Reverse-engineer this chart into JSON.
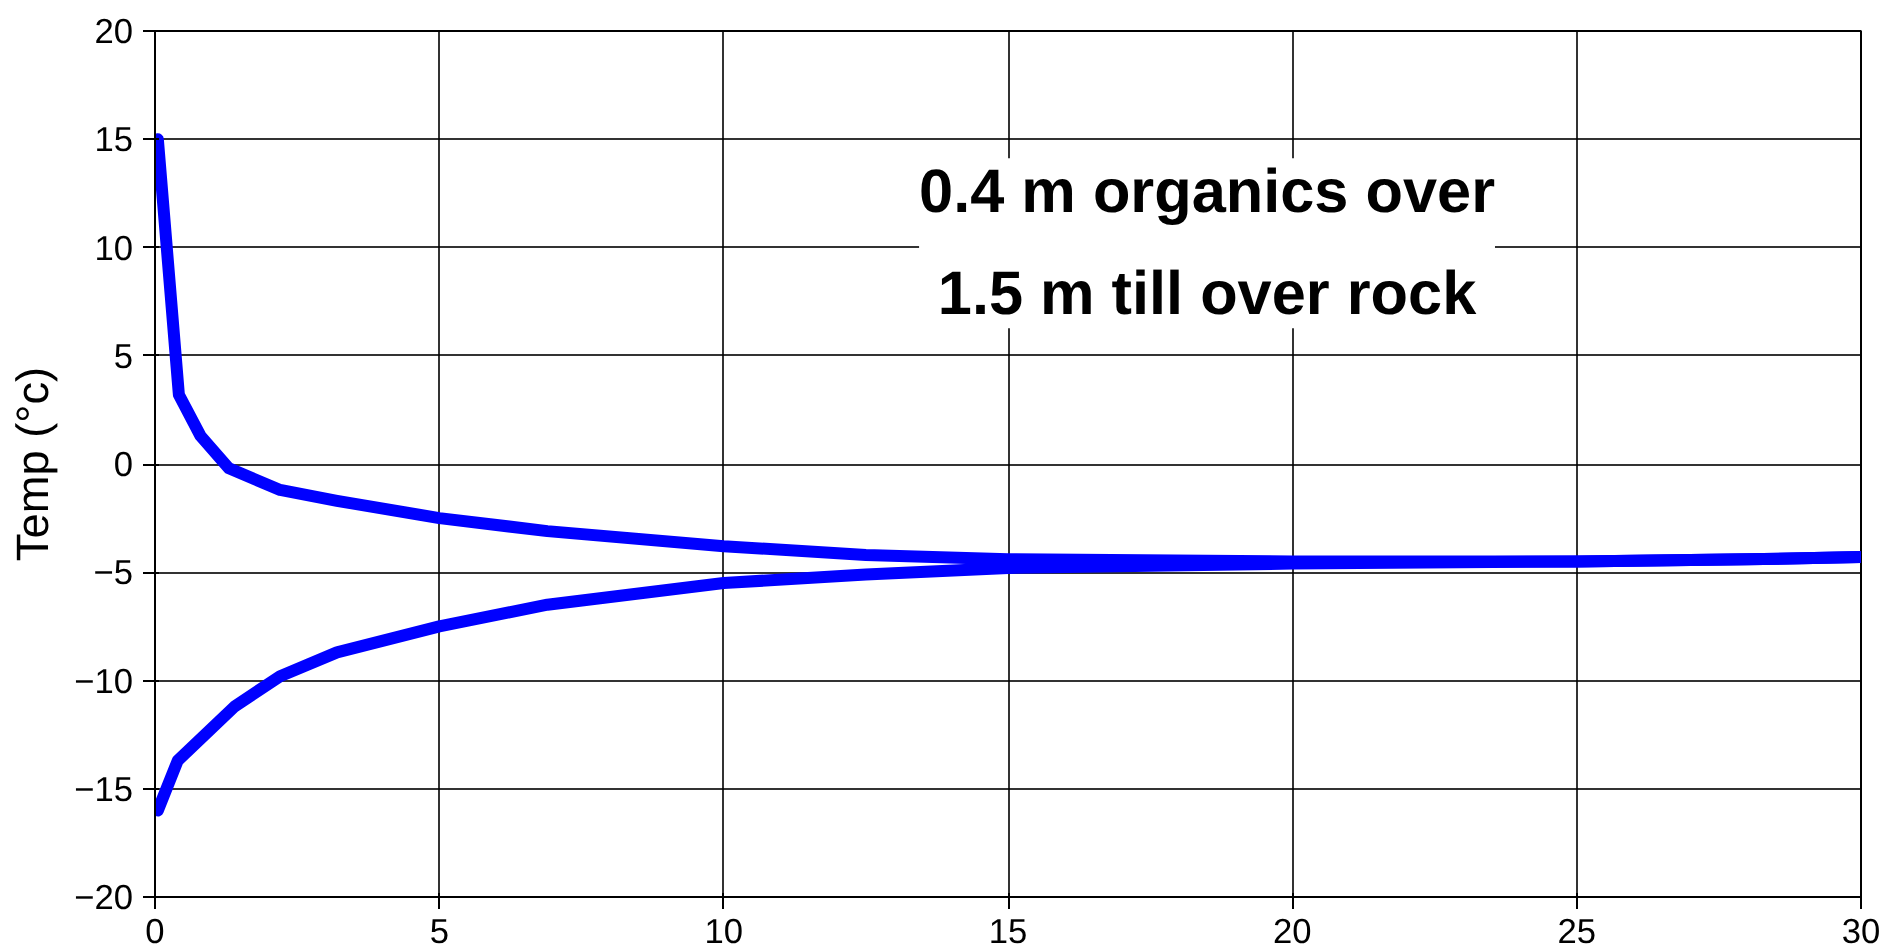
{
  "chart_data": {
    "type": "line",
    "ylabel": "Temp (°c)",
    "annotations": [
      "0.4 m organics over\n1.5 m till over rock"
    ],
    "xlim": [
      0,
      30
    ],
    "ylim": [
      -20,
      20
    ],
    "xticks": [
      0,
      5,
      10,
      15,
      20,
      25,
      30
    ],
    "yticks": [
      -20,
      -15,
      -10,
      -5,
      0,
      5,
      10,
      15,
      20
    ],
    "grid": true,
    "marker": "none",
    "line_style": "solid",
    "series": [
      {
        "color": "#0000ff",
        "x": [
          0.05,
          0.42,
          0.8,
          1.3,
          2.2,
          3.2,
          5,
          6.9,
          10,
          12.5,
          15,
          20,
          25,
          28,
          30
        ],
        "values": [
          15,
          3.2,
          1.3,
          -0.2,
          -1.2,
          -1.7,
          -2.5,
          -3.1,
          -3.8,
          -4.2,
          -4.4,
          -4.5,
          -4.5,
          -4.4,
          -4.3
        ]
      },
      {
        "color": "#0000ff",
        "x": [
          0.05,
          0.4,
          1.4,
          2.2,
          3.2,
          5,
          6.9,
          10,
          12.5,
          15,
          20,
          25,
          28,
          30
        ],
        "values": [
          -16,
          -13.7,
          -11.2,
          -9.8,
          -8.7,
          -7.5,
          -6.5,
          -5.5,
          -5.1,
          -4.8,
          -4.6,
          -4.5,
          -4.4,
          -4.3
        ]
      }
    ]
  }
}
